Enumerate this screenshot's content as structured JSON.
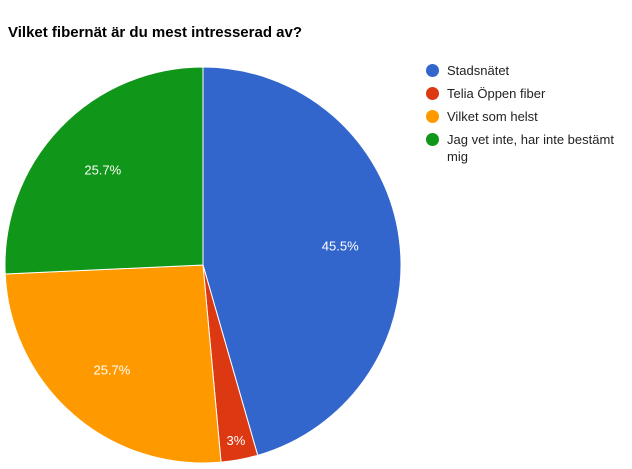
{
  "chart_data": {
    "type": "pie",
    "title": "Vilket fibernät är du mest intresserad av?",
    "legend_position": "right",
    "slices": [
      {
        "name": "Stadsnätet",
        "value": 45.5,
        "label": "45.5%",
        "color": "#3366cc"
      },
      {
        "name": "Telia Öppen fiber",
        "value": 3.0,
        "label": "3%",
        "color": "#dc3912"
      },
      {
        "name": "Vilket som helst",
        "value": 25.7,
        "label": "25.7%",
        "color": "#ff9900"
      },
      {
        "name": "Jag vet inte, har inte bestämt mig",
        "value": 25.7,
        "label": "25.7%",
        "color": "#109618"
      }
    ]
  }
}
